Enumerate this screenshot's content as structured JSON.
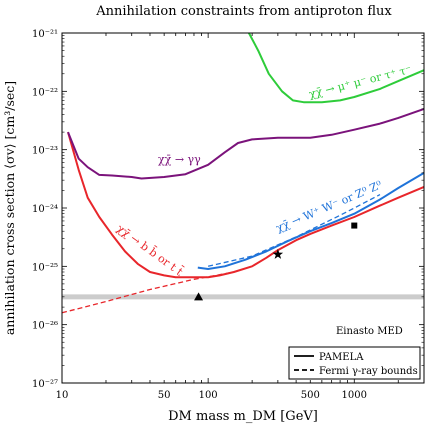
{
  "chart_data": {
    "type": "line",
    "title": "Annihilation constraints from antiproton flux",
    "xlabel": "DM mass m_DM [GeV]",
    "ylabel": "annihilation cross section ⟨σv⟩ [cm³/sec]",
    "xscale": "log",
    "yscale": "log",
    "xlim": [
      10,
      3000
    ],
    "ylim": [
      1e-27,
      1e-21
    ],
    "x_ticks": [
      "10",
      "50",
      "100",
      "500",
      "1000"
    ],
    "y_ticks": [
      "10⁻²¹",
      "10⁻²²",
      "10⁻²³",
      "10⁻²⁴",
      "10⁻²⁵",
      "10⁻²⁶",
      "10⁻²⁷"
    ],
    "annotation": "Einasto MED",
    "legend": {
      "placement": "bottom-right",
      "entries": [
        {
          "label": "PAMELA",
          "style": "solid"
        },
        {
          "label": "Fermi γ-ray bounds",
          "style": "dashed"
        }
      ]
    },
    "series": [
      {
        "label": "χχ̄ → b b̄ or t t̄",
        "color": "#e8262b",
        "style": "solid",
        "points": [
          [
            11,
            2e-23
          ],
          [
            13,
            4.5e-24
          ],
          [
            15,
            1.5e-24
          ],
          [
            18,
            7e-25
          ],
          [
            22,
            3.5e-25
          ],
          [
            27,
            1.8e-25
          ],
          [
            33,
            1.1e-25
          ],
          [
            40,
            8e-26
          ],
          [
            50,
            7e-26
          ],
          [
            60,
            6.5e-26
          ],
          [
            80,
            6.5e-26
          ],
          [
            100,
            6.5e-26
          ],
          [
            120,
            7e-26
          ],
          [
            150,
            8e-26
          ],
          [
            200,
            1e-25
          ],
          [
            250,
            1.4e-25
          ],
          [
            300,
            1.9e-25
          ],
          [
            400,
            2.8e-25
          ],
          [
            500,
            3.6e-25
          ],
          [
            700,
            5e-25
          ],
          [
            1000,
            7e-25
          ],
          [
            1500,
            1.1e-24
          ],
          [
            2000,
            1.5e-24
          ],
          [
            3000,
            2.3e-24
          ]
        ]
      },
      {
        "label": "χχ̄ → γγ",
        "color": "#7b137b",
        "style": "solid",
        "points": [
          [
            11,
            2e-23
          ],
          [
            13,
            7e-24
          ],
          [
            15,
            5e-24
          ],
          [
            18,
            3.7e-24
          ],
          [
            22,
            3.6e-24
          ],
          [
            30,
            3.4e-24
          ],
          [
            35,
            3.2e-24
          ],
          [
            50,
            3.4e-24
          ],
          [
            70,
            3.8e-24
          ],
          [
            100,
            5.5e-24
          ],
          [
            130,
            9e-24
          ],
          [
            160,
            1.3e-23
          ],
          [
            200,
            1.5e-23
          ],
          [
            300,
            1.6e-23
          ],
          [
            500,
            1.6e-23
          ],
          [
            700,
            1.8e-23
          ],
          [
            1000,
            2.2e-23
          ],
          [
            1500,
            2.8e-23
          ],
          [
            2000,
            3.5e-23
          ],
          [
            3000,
            5e-23
          ]
        ]
      },
      {
        "label": "χχ̄ → W⁺ W⁻ or Z⁰ Z⁰",
        "color": "#1f73d9",
        "style": "solid",
        "points": [
          [
            85,
            9.5e-26
          ],
          [
            100,
            9e-26
          ],
          [
            130,
            1e-25
          ],
          [
            180,
            1.3e-25
          ],
          [
            250,
            1.8e-25
          ],
          [
            350,
            2.7e-25
          ],
          [
            500,
            4e-25
          ],
          [
            700,
            5.5e-25
          ],
          [
            1000,
            8e-25
          ],
          [
            1500,
            1.4e-24
          ],
          [
            2000,
            2.2e-24
          ],
          [
            3000,
            4e-24
          ]
        ]
      },
      {
        "label": "χχ̄ → μ⁺ μ⁻ or τ⁺ τ⁻",
        "color": "#2ecc3a",
        "style": "solid",
        "points": [
          [
            190,
            1e-21
          ],
          [
            220,
            5e-22
          ],
          [
            260,
            2e-22
          ],
          [
            320,
            1e-22
          ],
          [
            380,
            7e-23
          ],
          [
            450,
            6.5e-23
          ],
          [
            600,
            6.5e-23
          ],
          [
            800,
            7e-23
          ],
          [
            1000,
            8e-23
          ],
          [
            1500,
            1.1e-22
          ],
          [
            2000,
            1.5e-22
          ],
          [
            3000,
            2.3e-22
          ]
        ]
      },
      {
        "label": "b b̄ Fermi",
        "color": "#e8262b",
        "style": "dashed",
        "points": [
          [
            10,
            1.6e-26
          ],
          [
            20,
            2.5e-26
          ],
          [
            40,
            4e-26
          ],
          [
            80,
            6e-26
          ],
          [
            120,
            7.2e-26
          ],
          [
            150,
            8e-26
          ]
        ]
      },
      {
        "label": "W⁺ W⁻ Fermi",
        "color": "#1f73d9",
        "style": "dashed",
        "points": [
          [
            100,
            1e-25
          ],
          [
            200,
            1.5e-25
          ],
          [
            400,
            3.2e-25
          ],
          [
            800,
            7.5e-25
          ],
          [
            1000,
            1e-24
          ],
          [
            1500,
            1.7e-24
          ]
        ]
      }
    ],
    "band": {
      "y": 3e-26,
      "color": "#cccccc"
    },
    "markers": [
      {
        "shape": "triangle",
        "x": 86,
        "y": 3e-26
      },
      {
        "shape": "star",
        "x": 300,
        "y": 1.6e-25
      },
      {
        "shape": "square",
        "x": 1000,
        "y": 5e-25
      }
    ]
  }
}
